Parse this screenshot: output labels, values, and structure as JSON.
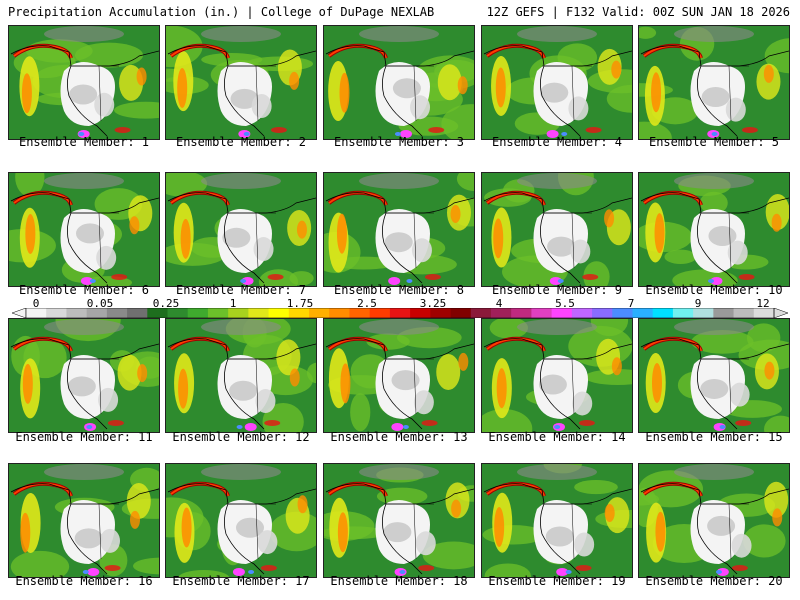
{
  "header": {
    "title": "Precipitation Accumulation (in.) | College of DuPage NEXLAB",
    "run_info": "12Z GEFS | F132 Valid: 00Z SUN JAN 18 2026"
  },
  "members": [
    {
      "label": "Ensemble Member: 1"
    },
    {
      "label": "Ensemble Member: 2"
    },
    {
      "label": "Ensemble Member: 3"
    },
    {
      "label": "Ensemble Member: 4"
    },
    {
      "label": "Ensemble Member: 5"
    },
    {
      "label": "Ensemble Member: 6"
    },
    {
      "label": "Ensemble Member: 7"
    },
    {
      "label": "Ensemble Member: 8"
    },
    {
      "label": "Ensemble Member: 9"
    },
    {
      "label": "Ensemble Member: 10"
    },
    {
      "label": "Ensemble Member: 11"
    },
    {
      "label": "Ensemble Member: 12"
    },
    {
      "label": "Ensemble Member: 13"
    },
    {
      "label": "Ensemble Member: 14"
    },
    {
      "label": "Ensemble Member: 15"
    },
    {
      "label": "Ensemble Member: 16"
    },
    {
      "label": "Ensemble Member: 17"
    },
    {
      "label": "Ensemble Member: 18"
    },
    {
      "label": "Ensemble Member: 19"
    },
    {
      "label": "Ensemble Member: 20"
    }
  ],
  "colorbar": {
    "tick_labels": [
      "0",
      "0.05",
      "0.25",
      "1",
      "1.75",
      "2.5",
      "3.25",
      "4",
      "5.5",
      "7",
      "9",
      "12"
    ],
    "colors": [
      "#f4f4f4",
      "#d9d9d9",
      "#bdbdbd",
      "#a6a6a6",
      "#8a8a8a",
      "#707070",
      "#1e6e1e",
      "#2e8b2e",
      "#3faa2e",
      "#6cc02a",
      "#a8d21e",
      "#e0e81a",
      "#ffff00",
      "#ffd700",
      "#ffb000",
      "#ff8c00",
      "#ff6400",
      "#ff3c00",
      "#e81414",
      "#c80000",
      "#a00000",
      "#800000",
      "#8b1a3a",
      "#a0205a",
      "#c02a80",
      "#e040c0",
      "#ff44ff",
      "#c066ff",
      "#8a6cff",
      "#4c8cff",
      "#2ab0ff",
      "#00e0ff",
      "#70f0f0",
      "#b0e0e0",
      "#9a9a9a",
      "#bcbcbc",
      "#dcdcdc"
    ]
  }
}
